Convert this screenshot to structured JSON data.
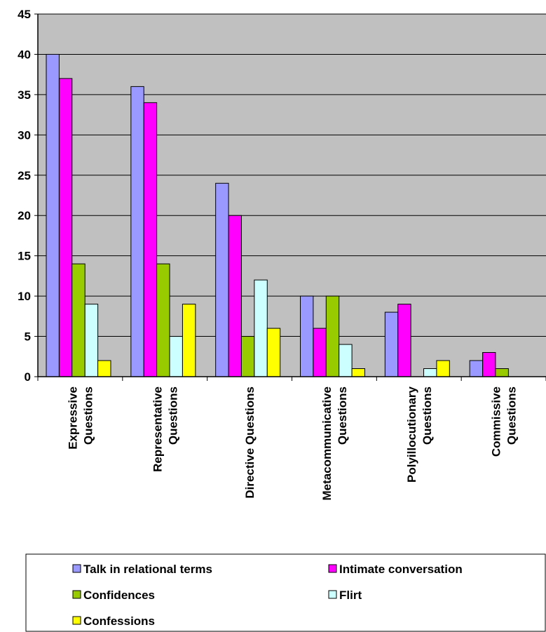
{
  "chart_data": {
    "type": "bar",
    "categories": [
      [
        "Expressive",
        "Questions"
      ],
      [
        "Representative",
        "Questions"
      ],
      [
        "Directive Questions"
      ],
      [
        "Metacommunicative",
        "Questions"
      ],
      [
        "Polyillocutionary",
        "Questions"
      ],
      [
        "Commissive",
        "Questions"
      ]
    ],
    "series": [
      {
        "name": "Talk in relational terms",
        "color": "#9999ff",
        "values": [
          40,
          36,
          24,
          10,
          8,
          2
        ]
      },
      {
        "name": "Intimate conversation",
        "color": "#ff00ff",
        "values": [
          37,
          34,
          20,
          6,
          9,
          3
        ]
      },
      {
        "name": "Confidences",
        "color": "#99cc00",
        "values": [
          14,
          14,
          5,
          10,
          0,
          1
        ]
      },
      {
        "name": "Flirt",
        "color": "#ccffff",
        "values": [
          9,
          5,
          12,
          4,
          1,
          0
        ]
      },
      {
        "name": "Confessions",
        "color": "#ffff00",
        "values": [
          2,
          9,
          6,
          1,
          2,
          0
        ]
      }
    ],
    "ylim": [
      0,
      45
    ],
    "yticks": [
      0,
      5,
      10,
      15,
      20,
      25,
      30,
      35,
      40,
      45
    ],
    "grid": true,
    "plot_background": "#c0c0c0",
    "legend_position": "bottom",
    "title": "",
    "xlabel": "",
    "ylabel": ""
  }
}
